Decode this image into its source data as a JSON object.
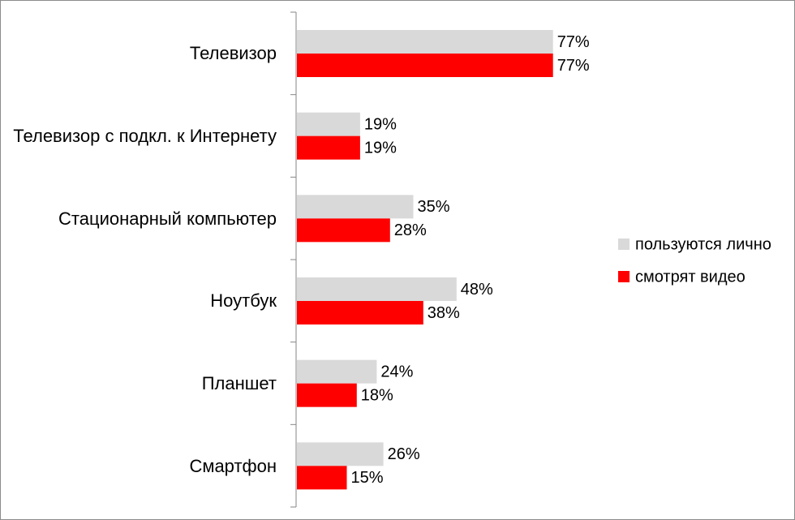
{
  "chart_data": {
    "type": "bar",
    "orientation": "horizontal",
    "categories": [
      "Телевизор",
      "Телевизор с подкл. к Интернету",
      "Стационарный компьютер",
      "Ноутбук",
      "Планшет",
      "Смартфон"
    ],
    "series": [
      {
        "name": "пользуются лично",
        "color": "#d9d9d9",
        "values": [
          77,
          19,
          35,
          48,
          24,
          26
        ],
        "value_labels": [
          "77%",
          "19%",
          "35%",
          "48%",
          "24%",
          "26%"
        ]
      },
      {
        "name": "смотрят видео",
        "color": "#ff0000",
        "values": [
          77,
          19,
          28,
          38,
          18,
          15
        ],
        "value_labels": [
          "77%",
          "19%",
          "28%",
          "38%",
          "18%",
          "15%"
        ]
      }
    ],
    "legend": "right"
  }
}
